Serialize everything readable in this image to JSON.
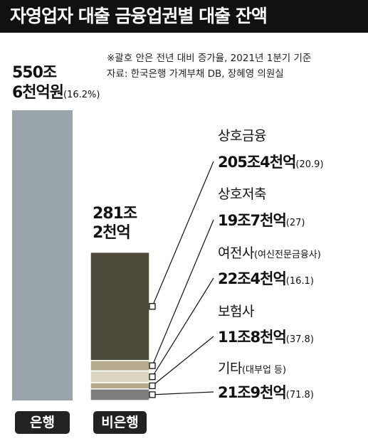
{
  "chart_data": {
    "type": "stacked-bar",
    "title": "자영업자 대출 금융업권별 대출 잔액",
    "notes": [
      "※괄호 안은 전년 대비 증가율, 2021년 1분기 기준",
      "자료: 한국은행 가계부채 DB, 장혜영 의원실"
    ],
    "categories": [
      "은행",
      "비은행"
    ],
    "values": [
      550.6,
      281.2
    ],
    "value_labels": [
      "550조\n6천억원",
      "281조\n2천억"
    ],
    "growth_label": "(16.2%)",
    "bar_color": "#9aa5ab",
    "segments": [
      {
        "name": "상호금융",
        "value": 205.4,
        "value_label": "205조4천억",
        "growth_label": "(20.9)",
        "color": "#4b4a38"
      },
      {
        "name": "상호저축",
        "value": 19.7,
        "value_label": "19조7천억",
        "growth_label": "(27)",
        "color": "#b5ab8c"
      },
      {
        "name": "여전사",
        "note": "(여신전문금융사)",
        "value": 22.4,
        "value_label": "22조4천억",
        "growth_label": "(16.1)",
        "color": "#dcd6c3"
      },
      {
        "name": "보험사",
        "value": 11.8,
        "value_label": "11조8천억",
        "growth_label": "(37.8)",
        "color": "#b5ab8c"
      },
      {
        "name": "기타",
        "note": "(대부업 등)",
        "value": 21.9,
        "value_label": "21조9천억",
        "growth_label": "(71.8)",
        "color": "#7d7d7d"
      }
    ]
  }
}
